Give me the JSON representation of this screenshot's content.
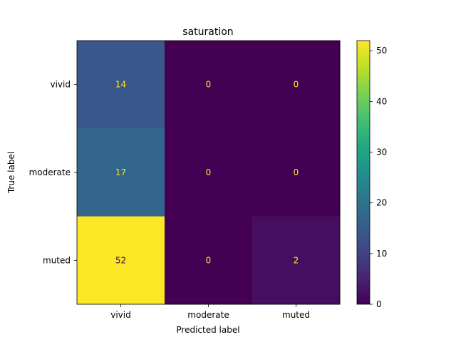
{
  "chart_data": {
    "type": "heatmap",
    "title": "saturation",
    "xlabel": "Predicted label",
    "ylabel": "True label",
    "x_categories": [
      "vivid",
      "moderate",
      "muted"
    ],
    "y_categories": [
      "vivid",
      "moderate",
      "muted"
    ],
    "values": [
      [
        14,
        0,
        0
      ],
      [
        17,
        0,
        0
      ],
      [
        52,
        0,
        2
      ]
    ],
    "colormap": "viridis",
    "colorbar": {
      "range": [
        0,
        52
      ],
      "ticks": [
        0,
        10,
        20,
        30,
        40,
        50
      ]
    },
    "text_colors": {
      "on_dark": "#fde725",
      "on_light": "#440154"
    }
  }
}
